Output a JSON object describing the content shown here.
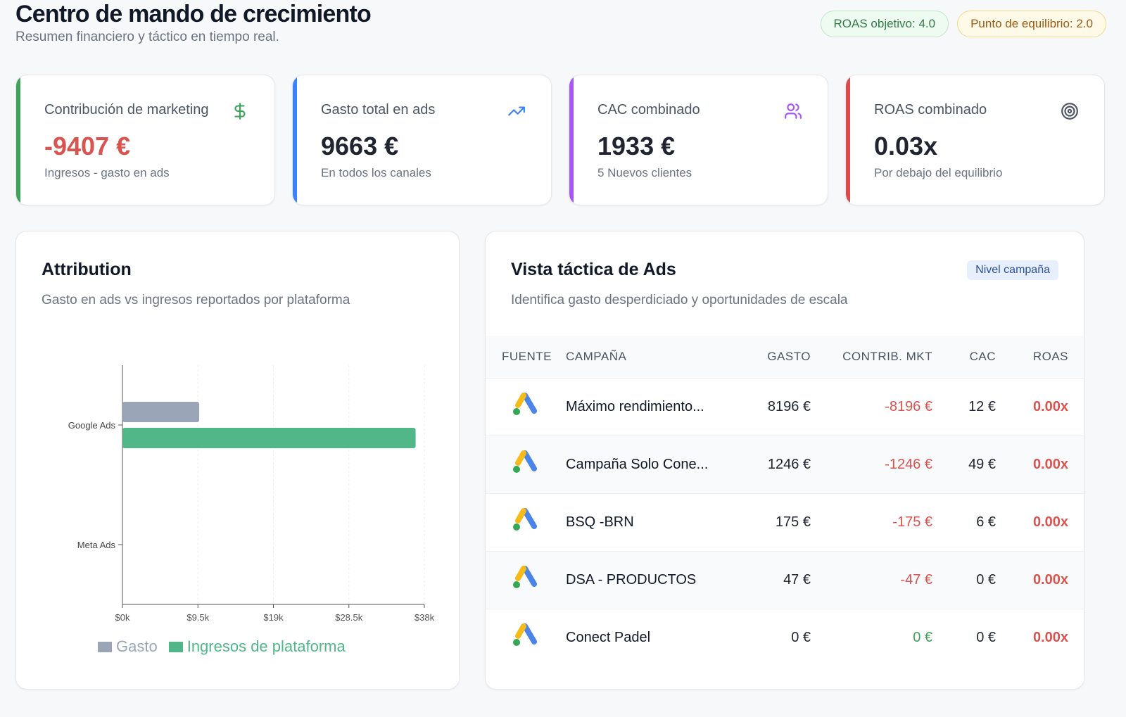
{
  "header": {
    "title": "Centro de mando de crecimiento",
    "subtitle": "Resumen financiero y táctico en tiempo real.",
    "pill_roas": "ROAS objetivo: 4.0",
    "pill_breakeven": "Punto de equilibrio: 2.0"
  },
  "kpis": [
    {
      "label": "Contribución de marketing",
      "value": "-9407 €",
      "sub": "Ingresos - gasto en ads",
      "icon": "dollar-icon",
      "accent": "#3fa35a"
    },
    {
      "label": "Gasto total en ads",
      "value": "9663 €",
      "sub": "En todos los canales",
      "icon": "trending-up-icon",
      "accent": "#3b82f6"
    },
    {
      "label": "CAC combinado",
      "value": "1933 €",
      "sub": "5 Nuevos clientes",
      "icon": "users-icon",
      "accent": "#a855f7"
    },
    {
      "label": "ROAS combinado",
      "value": "0.03x",
      "sub": "Por debajo del equilibrio",
      "icon": "target-icon",
      "accent": "#dc4c4c"
    }
  ],
  "attribution": {
    "title": "Attribution",
    "subtitle": "Gasto en ads vs ingresos reportados por plataforma",
    "legend": [
      "Gasto",
      "Ingresos de plataforma"
    ]
  },
  "chart_data": {
    "type": "bar",
    "orientation": "horizontal",
    "categories": [
      "Google Ads",
      "Meta Ads"
    ],
    "series": [
      {
        "name": "Gasto",
        "values": [
          9663,
          0
        ],
        "color": "#9aa5b8"
      },
      {
        "name": "Ingresos de plataforma",
        "values": [
          36900,
          0
        ],
        "color": "#52b788"
      }
    ],
    "xlim": [
      0,
      38000
    ],
    "xticks": [
      "$0k",
      "$9.5k",
      "$19k",
      "$28.5k",
      "$38k"
    ],
    "grid": true,
    "legend_position": "bottom"
  },
  "tactical": {
    "title": "Vista táctica de Ads",
    "subtitle": "Identifica gasto desperdiciado y oportunidades de escala",
    "badge": "Nivel campaña",
    "columns": [
      "Fuente",
      "Campaña",
      "Gasto",
      "Contrib. MKT",
      "CAC",
      "ROAS"
    ],
    "rows": [
      {
        "source": "google-ads-icon",
        "campaign": "Máximo rendimiento...",
        "spend": "8196 €",
        "contrib": "-8196 €",
        "contrib_sign": "neg",
        "cac": "12 €",
        "roas": "0.00x"
      },
      {
        "source": "google-ads-icon",
        "campaign": "Campaña Solo Cone...",
        "spend": "1246 €",
        "contrib": "-1246 €",
        "contrib_sign": "neg",
        "cac": "49 €",
        "roas": "0.00x"
      },
      {
        "source": "google-ads-icon",
        "campaign": "BSQ -BRN",
        "spend": "175 €",
        "contrib": "-175 €",
        "contrib_sign": "neg",
        "cac": "6 €",
        "roas": "0.00x"
      },
      {
        "source": "google-ads-icon",
        "campaign": "DSA - PRODUCTOS",
        "spend": "47 €",
        "contrib": "-47 €",
        "contrib_sign": "neg",
        "cac": "0 €",
        "roas": "0.00x"
      },
      {
        "source": "google-ads-icon",
        "campaign": "Conect Padel",
        "spend": "0 €",
        "contrib": "0 €",
        "contrib_sign": "pos",
        "cac": "0 €",
        "roas": "0.00x"
      }
    ]
  }
}
